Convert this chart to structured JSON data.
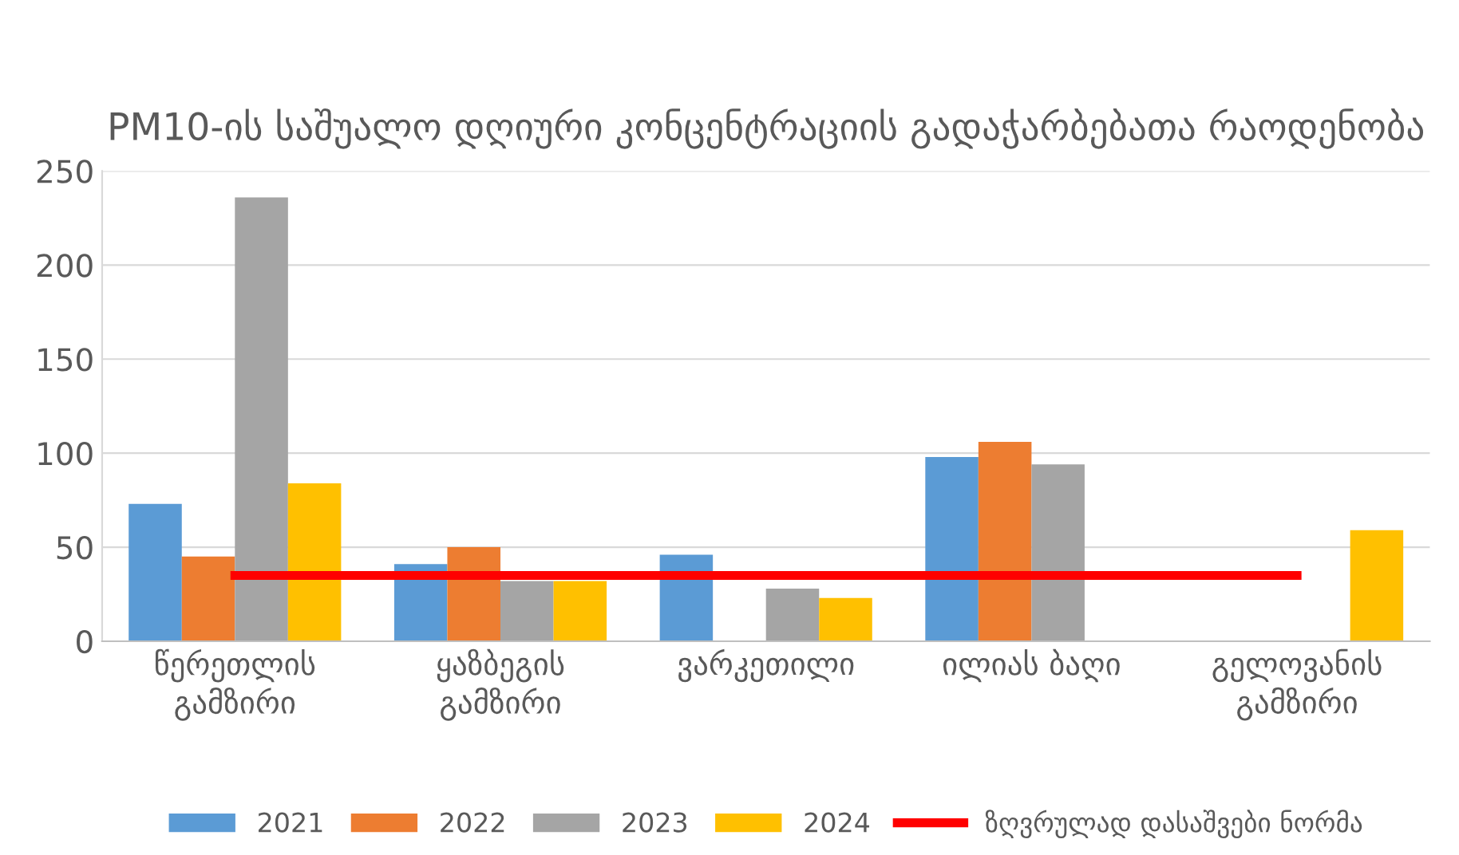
{
  "chart_data": {
    "type": "bar",
    "title": "PM10-ის საშუალო დღიური კონცენტრაციის გადაჭარბებათა რაოდენობა",
    "categories": [
      "წერეთლის\nგამზირი",
      "ყაზბეგის\nგამზირი",
      "ვარკეთილი",
      "ილიას ბაღი",
      "გელოვანის\nგამზირი"
    ],
    "series": [
      {
        "name": "2021",
        "color": "#5b9bd5",
        "values": [
          73,
          41,
          46,
          98,
          null
        ]
      },
      {
        "name": "2022",
        "color": "#ed7d31",
        "values": [
          45,
          50,
          null,
          106,
          null
        ]
      },
      {
        "name": "2023",
        "color": "#a5a5a5",
        "values": [
          236,
          32,
          28,
          94,
          null
        ]
      },
      {
        "name": "2024",
        "color": "#ffc000",
        "values": [
          84,
          32,
          23,
          null,
          59
        ]
      },
      {
        "name": "ზღვრულად დასაშვები ნორმა",
        "type": "line",
        "color": "#ff0000",
        "values": [
          35,
          35,
          35,
          35,
          35
        ]
      }
    ],
    "ylim": [
      0,
      250
    ],
    "yticks": [
      0,
      50,
      100,
      150,
      200,
      250
    ],
    "grid": "y",
    "legend": "bottom"
  }
}
